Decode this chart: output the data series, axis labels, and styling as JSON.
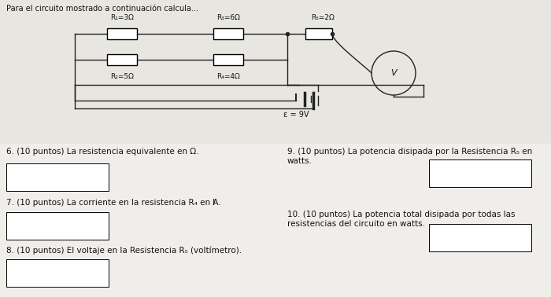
{
  "title": "Para el circuito mostrado a continuación calcula...",
  "background_color": "#e8e6e0",
  "circuit": {
    "R1_label": "R₁=3Ω",
    "R2_label": "R₂=5Ω",
    "R3_label": "R₃=6Ω",
    "R4_label": "R₄=4Ω",
    "R5_label": "R₅=2Ω",
    "emf_label": "ε = 9V"
  },
  "questions": [
    {
      "num": "6.",
      "points": "(10 puntos)",
      "text": "La resistencia equivalente en Ω."
    },
    {
      "num": "7.",
      "points": "(10 puntos)",
      "text": "La corriente en la resistencia R₄ en A."
    },
    {
      "num": "8.",
      "points": "(10 puntos)",
      "text": "El voltaje en la Resistencia R₅ (voltímetro)."
    },
    {
      "num": "9.",
      "points": "(10 puntos)",
      "text": "La potencia disipada por la Resistencia R₅ en\nwatts."
    },
    {
      "num": "10.",
      "points": "(10 puntos)",
      "text": "La potencia total disipada por todas las\nresistencias del circuito en watts."
    }
  ],
  "answer_box_color": "#ffffff",
  "line_color": "#222222",
  "text_color": "#111111",
  "fig_w": 7.0,
  "fig_h": 3.78,
  "dpi": 100
}
